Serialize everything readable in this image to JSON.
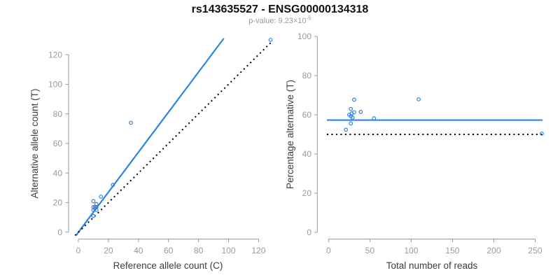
{
  "header": {
    "title": "rs143635527 - ENSG00000134318",
    "pvalue_prefix": "p-value: 9.23×10",
    "pvalue_exponent": "-5"
  },
  "colors": {
    "accent_blue": "#2D82E6",
    "dotted_black": "#000000",
    "axis_gray": "#999999",
    "label_dark": "#3d3d3d",
    "subtitle_gray": "#999999",
    "title_black": "#111111"
  },
  "chart_data": [
    {
      "type": "scatter",
      "panel": "left",
      "title": "",
      "xlabel": "Reference allele count (C)",
      "ylabel": "Alternative allele count (T)",
      "xlim": [
        0,
        130
      ],
      "ylim": [
        0,
        131
      ],
      "xticks": [
        0,
        20,
        40,
        60,
        80,
        100,
        120
      ],
      "yticks": [
        0,
        20,
        40,
        60,
        80,
        100,
        120
      ],
      "grid": false,
      "legend": "none",
      "points": [
        [
          10,
          21
        ],
        [
          10,
          17
        ],
        [
          12,
          19
        ],
        [
          15,
          24
        ],
        [
          10,
          15
        ],
        [
          11,
          17
        ],
        [
          12,
          17
        ],
        [
          11,
          16
        ],
        [
          23,
          32
        ],
        [
          12,
          15
        ],
        [
          10,
          11
        ],
        [
          35,
          74
        ],
        [
          128,
          130
        ]
      ],
      "lines": [
        {
          "name": "fit-line",
          "style": "solid",
          "color_key": "accent_blue",
          "slope": 1.353,
          "intercept": 0
        },
        {
          "name": "identity-line",
          "style": "dotted",
          "color_key": "dotted_black",
          "slope": 1,
          "intercept": 0
        }
      ]
    },
    {
      "type": "scatter",
      "panel": "right",
      "title": "",
      "xlabel": "Total number of reads",
      "ylabel": "Percentage alternative (T)",
      "xlim": [
        0,
        260
      ],
      "ylim": [
        0,
        100
      ],
      "xticks": [
        0,
        50,
        100,
        150,
        200,
        250
      ],
      "yticks": [
        0,
        20,
        40,
        60,
        80,
        100
      ],
      "grid": false,
      "legend": "none",
      "points": [
        [
          31,
          67.7
        ],
        [
          27,
          63
        ],
        [
          31,
          61.3
        ],
        [
          39,
          61.5
        ],
        [
          25,
          60
        ],
        [
          28,
          60.7
        ],
        [
          29,
          58.6
        ],
        [
          27,
          59.3
        ],
        [
          55,
          58.2
        ],
        [
          27,
          55.6
        ],
        [
          21,
          52.4
        ],
        [
          109,
          67.9
        ],
        [
          258,
          50.4
        ]
      ],
      "lines": [
        {
          "name": "mean-line",
          "style": "solid",
          "color_key": "accent_blue",
          "hline": 57.3
        },
        {
          "name": "null-line",
          "style": "dotted",
          "color_key": "dotted_black",
          "hline": 50
        }
      ]
    }
  ]
}
